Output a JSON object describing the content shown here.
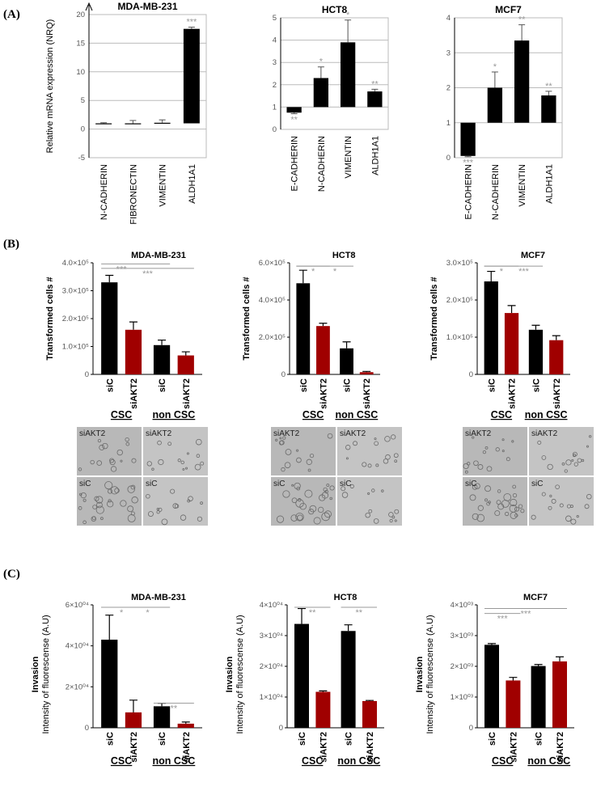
{
  "panel_labels": [
    "(A)",
    "(B)",
    "(C)"
  ],
  "micrographs": {
    "labels": [
      "siAKT2",
      "siC"
    ]
  },
  "chart_data": [
    {
      "type": "bar",
      "title": "MDA-MB-231",
      "ylabel": "Relative mRNA expression (NRQ)",
      "categories": [
        "N-CADHERIN",
        "FIBRONECTIN",
        "VIMENTIN",
        "ALDH1A1"
      ],
      "values": [
        1,
        1,
        1.1,
        17.5
      ],
      "errors": [
        0.1,
        0.5,
        0.5,
        0.3
      ],
      "colors": [
        "#000000",
        "#000000",
        "#000000",
        "#000000"
      ],
      "bar_base": 1,
      "ylim": [
        -5,
        20
      ],
      "yticks": [
        -5,
        0,
        5,
        10,
        15,
        20
      ],
      "grid": true,
      "annotations": [
        null,
        null,
        null,
        "***"
      ]
    },
    {
      "type": "bar",
      "title": "HCT8",
      "categories": [
        "E-CADHERIN",
        "N-CADHERIN",
        "VIMENTIN",
        "ALDH1A1"
      ],
      "values": [
        0.75,
        2.3,
        3.9,
        1.7
      ],
      "errors": [
        0.05,
        0.5,
        1.0,
        0.1
      ],
      "colors": [
        "#000000",
        "#000000",
        "#000000",
        "#000000"
      ],
      "bar_base": 1,
      "ylim": [
        0,
        5
      ],
      "yticks": [
        0,
        1,
        2,
        3,
        4,
        5
      ],
      "grid": true,
      "annotations": [
        "**",
        "*",
        "*",
        "**"
      ]
    },
    {
      "type": "bar",
      "title": "MCF7",
      "categories": [
        "E-CADHERIN",
        "N-CADHERIN",
        "VIMENTIN",
        "ALDH1A1"
      ],
      "values": [
        0.05,
        2.0,
        3.35,
        1.78
      ],
      "errors": [
        0.02,
        0.45,
        0.45,
        0.12
      ],
      "colors": [
        "#000000",
        "#000000",
        "#000000",
        "#000000"
      ],
      "bar_base": 1,
      "ylim": [
        0,
        4
      ],
      "yticks": [
        0,
        1,
        2,
        3,
        4
      ],
      "grid": true,
      "annotations": [
        "***",
        "*",
        "**",
        "**"
      ]
    },
    {
      "type": "grouped_bar",
      "title": "MDA-MB-231",
      "ylabel": "Transformed cells #",
      "categories": [
        "siC",
        "siAKT2",
        "siC",
        "siAKT2"
      ],
      "groups": [
        "CSC",
        "non CSC"
      ],
      "values": [
        330000,
        160000,
        105000,
        68000
      ],
      "errors": [
        25000,
        28000,
        18000,
        13000
      ],
      "colors": [
        "#000000",
        "#a00000",
        "#000000",
        "#a00000"
      ],
      "ylim": [
        0,
        400000
      ],
      "yticks": [
        0,
        {
          "value": 100000,
          "label": "1.0×10⁵"
        },
        {
          "value": 200000,
          "label": "2.0×10⁵"
        },
        {
          "value": 300000,
          "label": "3.0×10⁵"
        },
        {
          "value": 400000,
          "label": "4.0×10⁵"
        }
      ],
      "annotations": [
        "***",
        "***"
      ]
    },
    {
      "type": "grouped_bar",
      "title": "HCT8",
      "ylabel": "Transformed cells #",
      "categories": [
        "siC",
        "siAKT2",
        "siC",
        "siAKT2"
      ],
      "groups": [
        "CSC",
        "non CSC"
      ],
      "values": [
        490000,
        260000,
        140000,
        12000
      ],
      "errors": [
        70000,
        15000,
        35000,
        4000
      ],
      "colors": [
        "#000000",
        "#a00000",
        "#000000",
        "#a00000"
      ],
      "ylim": [
        0,
        600000
      ],
      "yticks": [
        0,
        {
          "value": 200000,
          "label": "2.0×10⁵"
        },
        {
          "value": 400000,
          "label": "4.0×10⁵"
        },
        {
          "value": 600000,
          "label": "6.0×10⁵"
        }
      ],
      "annotations": [
        "*",
        "*"
      ]
    },
    {
      "type": "grouped_bar",
      "title": "MCF7",
      "ylabel": "Transformed cells #",
      "categories": [
        "siC",
        "siAKT2",
        "siC",
        "siAKT2"
      ],
      "groups": [
        "CSC",
        "non CSC"
      ],
      "values": [
        250000,
        165000,
        120000,
        92000
      ],
      "errors": [
        27000,
        20000,
        12000,
        12000
      ],
      "colors": [
        "#000000",
        "#a00000",
        "#000000",
        "#a00000"
      ],
      "ylim": [
        0,
        300000
      ],
      "yticks": [
        0,
        {
          "value": 100000,
          "label": "1.0×10⁵"
        },
        {
          "value": 200000,
          "label": "2.0×10⁵"
        },
        {
          "value": 300000,
          "label": "3.0×10⁵"
        }
      ],
      "annotations": [
        "*",
        "***"
      ]
    },
    {
      "type": "grouped_bar",
      "title": "MDA-MB-231",
      "ylabel": "Invasion",
      "ylabel_sub": "Intensity of fluorescense (A.U)",
      "categories": [
        "siC",
        "siAKT2",
        "siC",
        "siAKT2"
      ],
      "groups": [
        "CSC",
        "non CSC"
      ],
      "values": [
        43000,
        7500,
        10500,
        2000
      ],
      "errors": [
        12000,
        6000,
        1500,
        800
      ],
      "colors": [
        "#000000",
        "#a00000",
        "#000000",
        "#a00000"
      ],
      "ylim": [
        0,
        60000
      ],
      "yticks": [
        0,
        {
          "value": 20000,
          "label": "2×10⁰⁴"
        },
        {
          "value": 40000,
          "label": "4×10⁰⁴"
        },
        {
          "value": 60000,
          "label": "6×10⁰⁴"
        }
      ],
      "annotations": [
        "*",
        "*",
        "**"
      ]
    },
    {
      "type": "grouped_bar",
      "title": "HCT8",
      "ylabel": "Invasion",
      "ylabel_sub": "Intensity of fluorescense (A.U)",
      "categories": [
        "siC",
        "siAKT2",
        "siC",
        "siAKT2"
      ],
      "groups": [
        "CSC",
        "non CSC"
      ],
      "values": [
        33800,
        11700,
        31500,
        8700
      ],
      "errors": [
        5000,
        300,
        2000,
        200
      ],
      "colors": [
        "#000000",
        "#a00000",
        "#000000",
        "#a00000"
      ],
      "ylim": [
        0,
        40000
      ],
      "yticks": [
        0,
        {
          "value": 10000,
          "label": "1×10⁰⁴"
        },
        {
          "value": 20000,
          "label": "2×10⁰⁴"
        },
        {
          "value": 30000,
          "label": "3×10⁰⁴"
        },
        {
          "value": 40000,
          "label": "4×10⁰⁴"
        }
      ],
      "annotations": [
        "**",
        "**"
      ]
    },
    {
      "type": "grouped_bar",
      "title": "MCF7",
      "ylabel": "Invasion",
      "ylabel_sub": "Intensity of fluorescense (A.U)",
      "categories": [
        "siC",
        "siAKT2",
        "siC",
        "siAKT2"
      ],
      "groups": [
        "CSC",
        "non CSC"
      ],
      "values": [
        2700,
        1540,
        2010,
        2160
      ],
      "errors": [
        40,
        100,
        50,
        150
      ],
      "colors": [
        "#000000",
        "#a00000",
        "#000000",
        "#a00000"
      ],
      "ylim": [
        0,
        4000
      ],
      "yticks": [
        0,
        {
          "value": 1000,
          "label": "1×10⁰³"
        },
        {
          "value": 2000,
          "label": "2×10⁰³"
        },
        {
          "value": 3000,
          "label": "3×10⁰³"
        },
        {
          "value": 4000,
          "label": "4×10⁰³"
        }
      ],
      "annotations": [
        "***",
        "***"
      ]
    }
  ]
}
